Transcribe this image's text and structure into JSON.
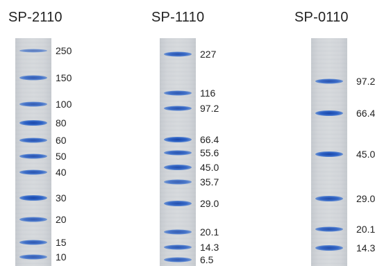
{
  "gels": [
    {
      "title": "SP-2110",
      "bands": [
        {
          "label": "250",
          "intensity": 0.35
        },
        {
          "label": "150",
          "intensity": 0.75
        },
        {
          "label": "100",
          "intensity": 0.75
        },
        {
          "label": "80",
          "intensity": 1.0
        },
        {
          "label": "60",
          "intensity": 0.85
        },
        {
          "label": "50",
          "intensity": 0.85
        },
        {
          "label": "40",
          "intensity": 0.85
        },
        {
          "label": "30",
          "intensity": 1.0
        },
        {
          "label": "20",
          "intensity": 0.75
        },
        {
          "label": "15",
          "intensity": 0.8
        },
        {
          "label": "10",
          "intensity": 0.75
        }
      ]
    },
    {
      "title": "SP-1110",
      "bands": [
        {
          "label": "227",
          "intensity": 0.85
        },
        {
          "label": "116",
          "intensity": 0.8
        },
        {
          "label": "97.2",
          "intensity": 0.85
        },
        {
          "label": "66.4",
          "intensity": 1.0
        },
        {
          "label": "55.6",
          "intensity": 0.85
        },
        {
          "label": "45.0",
          "intensity": 0.9
        },
        {
          "label": "35.7",
          "intensity": 0.7
        },
        {
          "label": "29.0",
          "intensity": 0.9
        },
        {
          "label": "20.1",
          "intensity": 0.75
        },
        {
          "label": "14.3",
          "intensity": 0.8
        },
        {
          "label": "6.5",
          "intensity": 0.75
        }
      ]
    },
    {
      "title": "SP-0110",
      "bands": [
        {
          "label": "97.2",
          "intensity": 0.85
        },
        {
          "label": "66.4",
          "intensity": 1.0
        },
        {
          "label": "45.0",
          "intensity": 1.0
        },
        {
          "label": "29.0",
          "intensity": 0.9
        },
        {
          "label": "20.1",
          "intensity": 0.85
        },
        {
          "label": "14.3",
          "intensity": 0.9
        }
      ]
    }
  ]
}
